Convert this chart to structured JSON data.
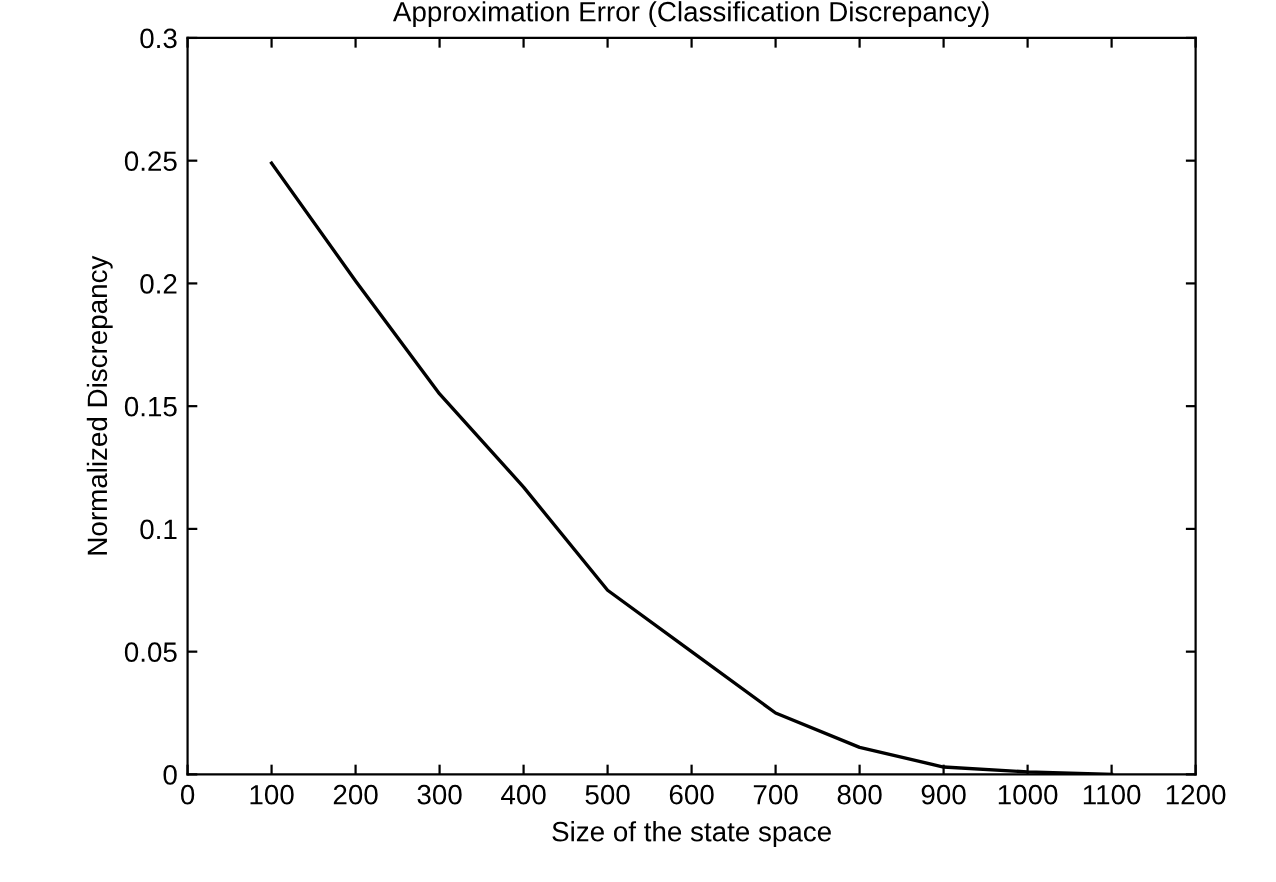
{
  "chart_data": {
    "type": "line",
    "title": "Approximation Error (Classification Discrepancy)",
    "xlabel": "Size of the state space",
    "ylabel": "Normalized Discrepancy",
    "x": [
      100,
      200,
      300,
      400,
      500,
      600,
      700,
      800,
      900,
      1000,
      1100
    ],
    "series": [
      {
        "color": "#000000",
        "values": [
          0.249,
          0.201,
          0.155,
          0.117,
          0.075,
          0.05,
          0.025,
          0.011,
          0.003,
          0.001,
          0.0
        ]
      }
    ],
    "xlim": [
      0,
      1200
    ],
    "xticks": [
      0,
      100,
      200,
      300,
      400,
      500,
      600,
      700,
      800,
      900,
      1000,
      1100,
      1200
    ],
    "ylim": [
      0,
      0.3
    ],
    "yticks": [
      0,
      0.05,
      0.1,
      0.15,
      0.2,
      0.25,
      0.3
    ],
    "grid": false,
    "legend": false,
    "marker": "none",
    "line_style": "solid"
  }
}
